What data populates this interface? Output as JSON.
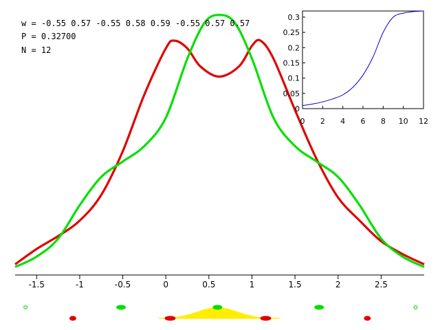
{
  "header": {
    "w_line": "w = -0.55 0.57 -0.55 0.58 0.59 -0.55 0.57 0.57",
    "p_line": "P = 0.32700",
    "n_line": "N = 12"
  },
  "colors": {
    "series_red": "#e00000",
    "series_green": "#00e000",
    "inset_line": "#0000cc",
    "area_fill": "#ffee00"
  },
  "chart_data": [
    {
      "type": "line",
      "xlim": [
        -1.75,
        3.0
      ],
      "ylim": [
        0,
        1.0
      ],
      "xticks": [
        -1.5,
        -1,
        -0.5,
        0,
        0.5,
        1,
        1.5,
        2,
        2.5
      ],
      "xtick_labels": [
        "-1.5",
        "-1",
        "-0.5",
        "0",
        "0.5",
        "1",
        "1.5",
        "2",
        "2.5"
      ],
      "grid": false,
      "series": [
        {
          "color": "#e00000",
          "x": [
            -1.75,
            -1.5,
            -1.25,
            -1.0,
            -0.75,
            -0.5,
            -0.25,
            0.0,
            0.1,
            0.25,
            0.4,
            0.62,
            0.85,
            1.0,
            1.1,
            1.25,
            1.5,
            1.75,
            2.0,
            2.25,
            2.5,
            2.75,
            3.0
          ],
          "y": [
            0.02,
            0.08,
            0.13,
            0.19,
            0.29,
            0.46,
            0.68,
            0.86,
            0.89,
            0.86,
            0.79,
            0.75,
            0.79,
            0.87,
            0.89,
            0.82,
            0.62,
            0.43,
            0.28,
            0.19,
            0.11,
            0.06,
            0.02
          ]
        },
        {
          "color": "#00e000",
          "x": [
            -1.75,
            -1.5,
            -1.25,
            -1.0,
            -0.75,
            -0.5,
            -0.25,
            0.0,
            0.25,
            0.45,
            0.62,
            0.8,
            1.0,
            1.25,
            1.5,
            1.75,
            2.0,
            2.25,
            2.5,
            2.75,
            3.0
          ],
          "y": [
            0.01,
            0.05,
            0.12,
            0.25,
            0.36,
            0.42,
            0.48,
            0.59,
            0.82,
            0.96,
            0.99,
            0.96,
            0.82,
            0.59,
            0.48,
            0.42,
            0.36,
            0.25,
            0.12,
            0.05,
            0.01
          ]
        }
      ]
    },
    {
      "type": "line",
      "xlim": [
        0,
        12
      ],
      "ylim": [
        0,
        0.32
      ],
      "xticks": [
        0,
        2,
        4,
        6,
        8,
        10,
        12
      ],
      "xtick_labels": [
        "0",
        "2",
        "4",
        "6",
        "8",
        "10",
        "12"
      ],
      "yticks": [
        0,
        0.05,
        0.1,
        0.15,
        0.2,
        0.25,
        0.3
      ],
      "ytick_labels": [
        "0",
        "0.05",
        "0.1",
        "0.15",
        "0.2",
        "0.25",
        "0.3"
      ],
      "series": [
        {
          "color": "#0000cc",
          "x": [
            0,
            1,
            2,
            3,
            4,
            5,
            6,
            7,
            8,
            9,
            10,
            11,
            12
          ],
          "y": [
            0.01,
            0.015,
            0.022,
            0.032,
            0.045,
            0.07,
            0.11,
            0.17,
            0.25,
            0.3,
            0.313,
            0.318,
            0.32
          ]
        }
      ]
    }
  ],
  "strip": {
    "green_points": [
      -1.63,
      -0.52,
      0.6,
      1.78,
      2.9
    ],
    "red_points": [
      -1.08,
      0.05,
      1.16,
      2.34
    ],
    "yellow_peak": 0.6
  }
}
